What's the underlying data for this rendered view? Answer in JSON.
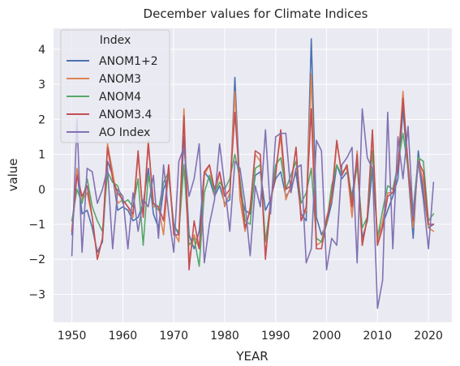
{
  "chart_data": {
    "type": "line",
    "title": "December values for Climate Indices",
    "xlabel": "YEAR",
    "ylabel": "value",
    "xlim": [
      1946.4,
      2024.6
    ],
    "ylim": [
      -3.8,
      4.6
    ],
    "xticks": [
      1950,
      1960,
      1970,
      1980,
      1990,
      2000,
      2010,
      2020
    ],
    "yticks": [
      -3,
      -2,
      -1,
      0,
      1,
      2,
      3,
      4
    ],
    "grid": true,
    "legend": {
      "title": "Index",
      "placement": "top-left"
    },
    "x_start": 1950,
    "series": [
      {
        "name": "ANOM1+2",
        "color": "#4c72b0",
        "values": [
          -1.3,
          0.5,
          -0.7,
          -0.6,
          -1.1,
          -1.8,
          -1.5,
          0.8,
          0.4,
          -0.6,
          -0.5,
          -0.6,
          -0.9,
          -0.8,
          -0.4,
          0.6,
          -0.7,
          -1.1,
          0.0,
          0.4,
          -1.0,
          -1.3,
          1.5,
          -1.3,
          -1.7,
          -1.2,
          0.5,
          0.3,
          -0.2,
          0.1,
          -0.4,
          -0.3,
          3.2,
          -0.1,
          -0.6,
          -0.7,
          0.4,
          0.5,
          -0.6,
          -0.3,
          0.3,
          0.5,
          -0.2,
          0.0,
          0.5,
          -0.7,
          -0.9,
          4.3,
          -0.8,
          -1.3,
          -1.0,
          -0.4,
          0.7,
          0.3,
          0.5,
          -0.2,
          0.9,
          -1.4,
          -0.9,
          0.6,
          -1.3,
          -1.0,
          -0.6,
          -0.2,
          0.3,
          2.3,
          0.5,
          -1.4,
          1.1,
          -0.1,
          -1.1,
          -1.0
        ]
      },
      {
        "name": "ANOM3",
        "color": "#dd8452",
        "values": [
          -1.2,
          0.6,
          -0.3,
          -0.1,
          -0.8,
          -2.0,
          -1.4,
          1.3,
          0.5,
          -0.4,
          -0.3,
          -0.5,
          -0.8,
          1.0,
          -0.8,
          1.4,
          -0.5,
          -0.5,
          -1.3,
          0.6,
          -1.2,
          -1.5,
          2.3,
          -2.0,
          -1.3,
          -1.7,
          0.4,
          0.7,
          -0.2,
          0.5,
          -0.5,
          -0.1,
          2.8,
          -0.3,
          -1.2,
          -0.5,
          1.0,
          0.8,
          -1.9,
          -0.5,
          0.6,
          1.5,
          -0.3,
          0.1,
          1.2,
          -0.9,
          -0.6,
          3.3,
          -1.6,
          -1.5,
          -0.8,
          -0.3,
          1.3,
          0.5,
          0.6,
          -0.8,
          1.1,
          -1.6,
          -0.8,
          1.6,
          -1.6,
          -0.9,
          -0.1,
          -0.1,
          0.6,
          2.8,
          0.6,
          -1.1,
          0.9,
          0.2,
          -1.1,
          -1.2
        ]
      },
      {
        "name": "ANOM4",
        "color": "#55a868",
        "values": [
          -0.9,
          0.0,
          -0.4,
          0.3,
          -0.5,
          -0.9,
          -1.2,
          0.5,
          0.2,
          0.1,
          -0.4,
          -0.3,
          -0.5,
          0.3,
          -1.6,
          0.4,
          -0.4,
          -0.6,
          0.2,
          0.5,
          -1.1,
          -1.2,
          0.7,
          -1.6,
          -1.4,
          -2.2,
          -0.1,
          0.4,
          -0.1,
          0.2,
          0.0,
          0.3,
          1.0,
          0.3,
          -0.9,
          -1.0,
          0.6,
          0.7,
          -1.5,
          -0.4,
          0.7,
          0.9,
          0.0,
          0.4,
          0.8,
          -0.4,
          -0.1,
          0.6,
          -1.4,
          -1.5,
          -1.0,
          0.1,
          0.7,
          0.4,
          0.7,
          -0.3,
          0.7,
          -1.1,
          -0.8,
          1.1,
          -1.4,
          -0.6,
          0.1,
          0.0,
          0.7,
          1.6,
          0.6,
          -0.6,
          0.9,
          0.8,
          -0.9,
          -0.7
        ]
      },
      {
        "name": "ANOM3.4",
        "color": "#c44e52",
        "values": [
          -1.2,
          0.4,
          -0.2,
          0.1,
          -0.8,
          -2.0,
          -1.4,
          1.2,
          0.3,
          -0.1,
          -0.3,
          -0.5,
          -0.7,
          1.1,
          -0.8,
          1.3,
          -0.4,
          -0.5,
          -0.9,
          0.7,
          -1.3,
          -1.3,
          2.1,
          -2.3,
          -0.9,
          -1.7,
          0.5,
          0.7,
          0.0,
          0.5,
          -0.2,
          0.0,
          2.2,
          0.1,
          -1.1,
          -0.6,
          1.1,
          1.0,
          -2.0,
          -0.3,
          0.4,
          1.7,
          0.0,
          0.1,
          1.2,
          -0.9,
          -0.5,
          2.3,
          -1.7,
          -1.7,
          -0.9,
          -0.2,
          1.4,
          0.4,
          0.7,
          -0.5,
          1.0,
          -1.6,
          -0.8,
          1.7,
          -1.6,
          -1.1,
          -0.2,
          -0.1,
          0.6,
          2.6,
          0.7,
          -0.9,
          0.8,
          0.5,
          -1.0,
          -1.0
        ]
      },
      {
        "name": "AO Index",
        "color": "#8172b3",
        "values": [
          -1.9,
          2.0,
          -1.8,
          0.6,
          0.5,
          -0.4,
          0.0,
          0.6,
          -1.7,
          0.0,
          -0.2,
          -1.7,
          -0.1,
          -1.2,
          -0.3,
          -0.5,
          0.4,
          -1.4,
          0.7,
          -0.7,
          -1.8,
          0.8,
          1.2,
          -0.2,
          0.3,
          1.3,
          -2.1,
          -1.0,
          -0.3,
          1.3,
          0.1,
          -1.2,
          0.8,
          0.6,
          -0.4,
          -1.9,
          0.1,
          -0.5,
          1.7,
          -0.7,
          1.5,
          1.6,
          1.6,
          -0.1,
          0.6,
          0.7,
          -2.1,
          -1.7,
          1.4,
          1.1,
          -2.3,
          -1.4,
          -1.6,
          0.7,
          0.9,
          1.2,
          -2.1,
          2.3,
          0.9,
          0.6,
          -3.4,
          -2.6,
          2.2,
          -1.7,
          1.5,
          0.3,
          1.8,
          -0.8,
          0.8,
          -0.3,
          -1.7,
          0.2
        ]
      }
    ]
  }
}
